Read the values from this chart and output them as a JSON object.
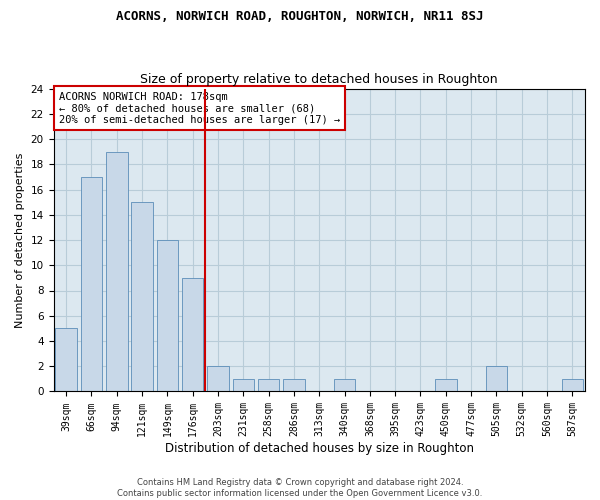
{
  "title": "ACORNS, NORWICH ROAD, ROUGHTON, NORWICH, NR11 8SJ",
  "subtitle": "Size of property relative to detached houses in Roughton",
  "xlabel": "Distribution of detached houses by size in Roughton",
  "ylabel": "Number of detached properties",
  "bar_color": "#c8d8e8",
  "bar_edge_color": "#5b8db8",
  "vline_color": "#cc0000",
  "vline_x_index": 5,
  "annotation_line1": "ACORNS NORWICH ROAD: 178sqm",
  "annotation_line2": "← 80% of detached houses are smaller (68)",
  "annotation_line3": "20% of semi-detached houses are larger (17) →",
  "annotation_box_color": "#cc0000",
  "categories": [
    "39sqm",
    "66sqm",
    "94sqm",
    "121sqm",
    "149sqm",
    "176sqm",
    "203sqm",
    "231sqm",
    "258sqm",
    "286sqm",
    "313sqm",
    "340sqm",
    "368sqm",
    "395sqm",
    "423sqm",
    "450sqm",
    "477sqm",
    "505sqm",
    "532sqm",
    "560sqm",
    "587sqm"
  ],
  "values": [
    5,
    17,
    19,
    15,
    12,
    9,
    2,
    1,
    1,
    1,
    0,
    1,
    0,
    0,
    0,
    1,
    0,
    2,
    0,
    0,
    1
  ],
  "ylim": [
    0,
    24
  ],
  "yticks": [
    0,
    2,
    4,
    6,
    8,
    10,
    12,
    14,
    16,
    18,
    20,
    22,
    24
  ],
  "footer_line1": "Contains HM Land Registry data © Crown copyright and database right 2024.",
  "footer_line2": "Contains public sector information licensed under the Open Government Licence v3.0.",
  "background_color": "#ffffff",
  "ax_background_color": "#dce8f0",
  "grid_color": "#b8ccd8"
}
